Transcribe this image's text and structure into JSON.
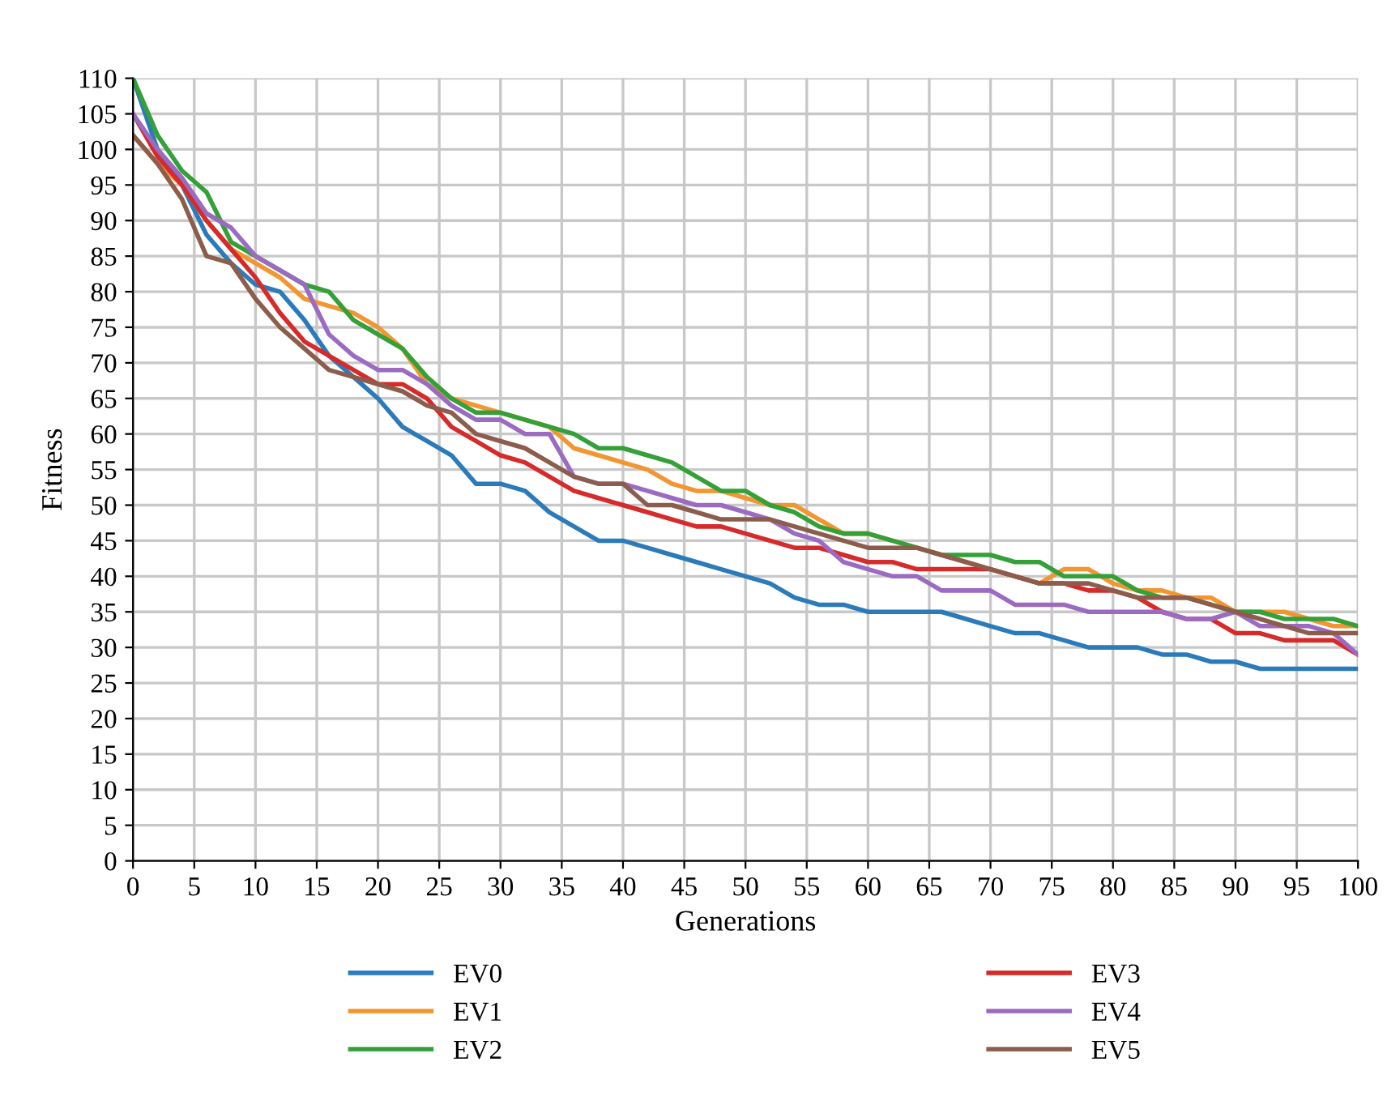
{
  "chart_data": {
    "type": "line",
    "xlabel": "Generations",
    "ylabel": "Fitness",
    "x": [
      0,
      2,
      4,
      6,
      8,
      10,
      12,
      14,
      16,
      18,
      20,
      22,
      24,
      26,
      28,
      30,
      32,
      34,
      36,
      38,
      40,
      42,
      44,
      46,
      48,
      50,
      52,
      54,
      56,
      58,
      60,
      62,
      64,
      66,
      68,
      70,
      72,
      74,
      76,
      78,
      80,
      82,
      84,
      86,
      88,
      90,
      92,
      94,
      96,
      98,
      100
    ],
    "series": [
      {
        "name": "EV0",
        "color": "#2b7bba",
        "values": [
          110,
          100,
          95,
          88,
          84,
          81,
          80,
          76,
          71,
          68,
          65,
          61,
          59,
          57,
          53,
          53,
          52,
          49,
          47,
          45,
          45,
          44,
          43,
          42,
          41,
          40,
          39,
          37,
          36,
          36,
          35,
          35,
          35,
          35,
          34,
          33,
          32,
          32,
          31,
          30,
          30,
          30,
          29,
          29,
          28,
          28,
          27,
          27,
          27,
          27,
          27
        ]
      },
      {
        "name": "EV1",
        "color": "#f39530",
        "values": [
          102,
          98,
          95,
          90,
          86,
          84,
          82,
          79,
          78,
          77,
          75,
          72,
          67,
          65,
          64,
          63,
          62,
          61,
          58,
          57,
          56,
          55,
          53,
          52,
          52,
          51,
          50,
          50,
          48,
          46,
          46,
          45,
          44,
          43,
          42,
          41,
          40,
          39,
          41,
          41,
          39,
          38,
          38,
          37,
          37,
          35,
          35,
          35,
          34,
          33,
          33
        ]
      },
      {
        "name": "EV2",
        "color": "#34a038",
        "values": [
          110,
          102,
          97,
          94,
          87,
          85,
          83,
          81,
          80,
          76,
          74,
          72,
          68,
          65,
          63,
          63,
          62,
          61,
          60,
          58,
          58,
          57,
          56,
          54,
          52,
          52,
          50,
          49,
          47,
          46,
          46,
          45,
          44,
          43,
          43,
          43,
          42,
          42,
          40,
          40,
          40,
          38,
          37,
          37,
          36,
          35,
          35,
          34,
          34,
          34,
          33
        ]
      },
      {
        "name": "EV3",
        "color": "#d62b2b",
        "values": [
          105,
          99,
          95,
          90,
          86,
          82,
          77,
          73,
          71,
          69,
          67,
          67,
          65,
          61,
          59,
          57,
          56,
          54,
          52,
          51,
          50,
          49,
          48,
          47,
          47,
          46,
          45,
          44,
          44,
          43,
          42,
          42,
          41,
          41,
          41,
          41,
          40,
          39,
          39,
          38,
          38,
          37,
          35,
          34,
          34,
          32,
          32,
          31,
          31,
          31,
          29
        ]
      },
      {
        "name": "EV4",
        "color": "#9b6bc1",
        "values": [
          105,
          100,
          96,
          91,
          89,
          85,
          83,
          81,
          74,
          71,
          69,
          69,
          67,
          64,
          62,
          62,
          60,
          60,
          54,
          53,
          53,
          52,
          51,
          50,
          50,
          49,
          48,
          46,
          45,
          42,
          41,
          40,
          40,
          38,
          38,
          38,
          36,
          36,
          36,
          35,
          35,
          35,
          35,
          34,
          34,
          35,
          33,
          33,
          33,
          32,
          29
        ]
      },
      {
        "name": "EV5",
        "color": "#8c5d4c",
        "values": [
          102,
          98,
          93,
          85,
          84,
          79,
          75,
          72,
          69,
          68,
          67,
          66,
          64,
          63,
          60,
          59,
          58,
          56,
          54,
          53,
          53,
          50,
          50,
          49,
          48,
          48,
          48,
          47,
          46,
          45,
          44,
          44,
          44,
          43,
          42,
          41,
          40,
          39,
          39,
          39,
          38,
          37,
          37,
          37,
          36,
          35,
          34,
          33,
          32,
          32,
          32
        ]
      }
    ],
    "xlim": [
      0,
      100
    ],
    "ylim": [
      0,
      110
    ],
    "xticks": [
      0,
      5,
      10,
      15,
      20,
      25,
      30,
      35,
      40,
      45,
      50,
      55,
      60,
      65,
      70,
      75,
      80,
      85,
      90,
      95,
      100
    ],
    "yticks": [
      0,
      5,
      10,
      15,
      20,
      25,
      30,
      35,
      40,
      45,
      50,
      55,
      60,
      65,
      70,
      75,
      80,
      85,
      90,
      95,
      100,
      105,
      110
    ],
    "grid": true,
    "legend": "bottom",
    "line_style": "solid"
  }
}
